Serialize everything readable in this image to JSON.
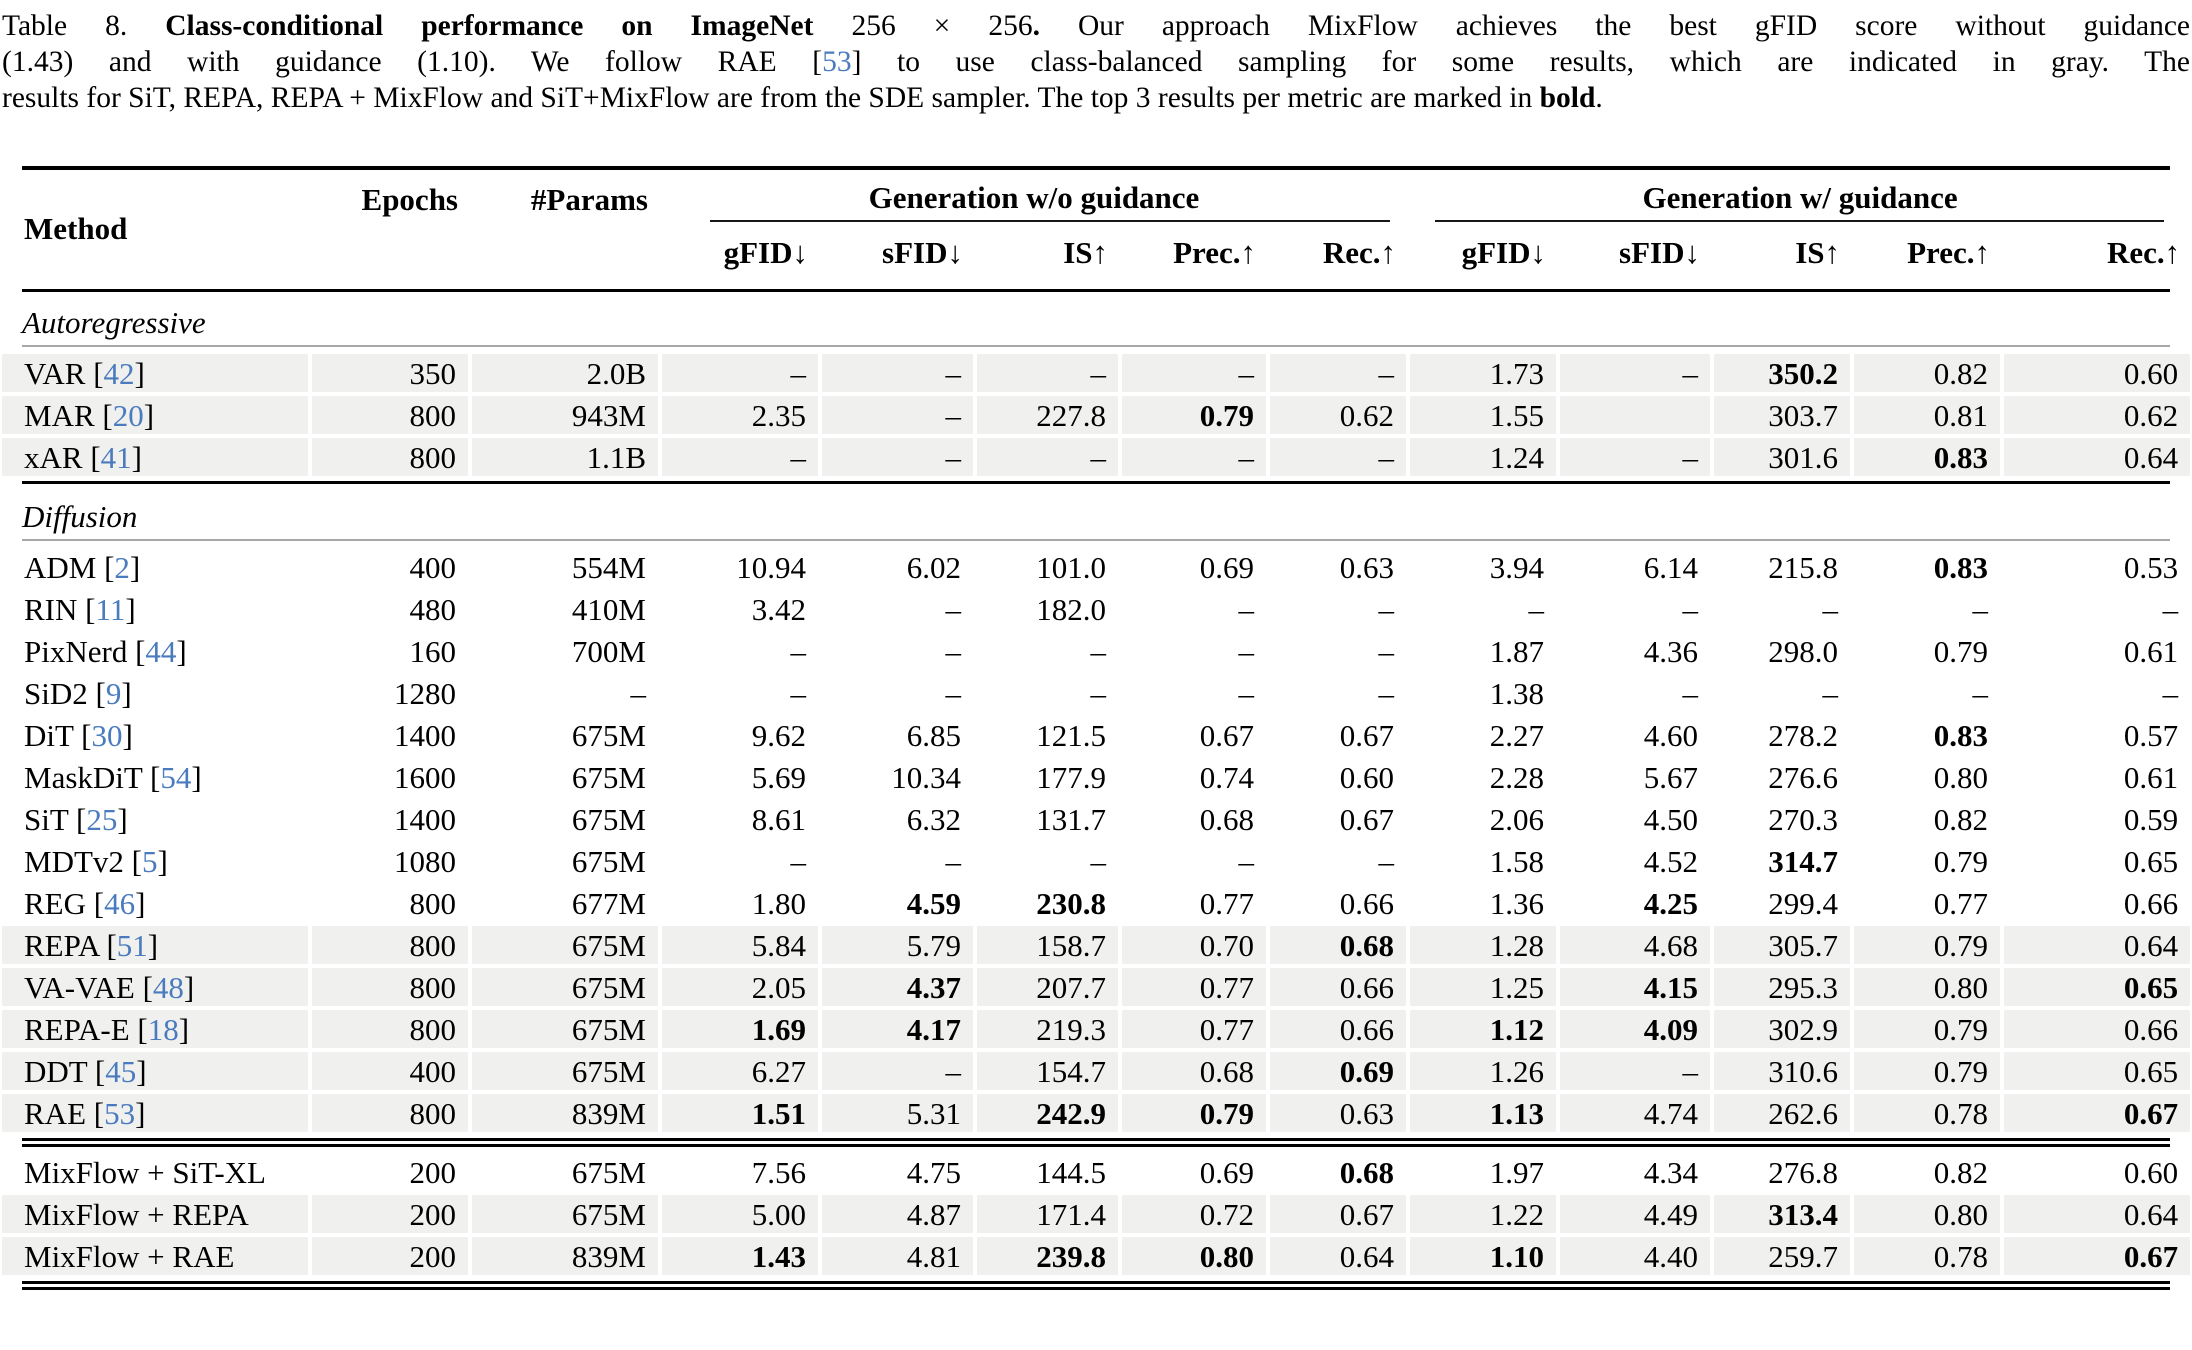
{
  "colors": {
    "citation_blue": "#4a7bbf",
    "row_gray": "#f0f0ef",
    "rule_black": "#000000",
    "thin_rule_gray": "#a8a8a8"
  },
  "caption": {
    "lines": [
      [
        {
          "t": "Table 8.  ",
          "b": false
        },
        {
          "t": "Class-conditional performance on ImageNet ",
          "b": true
        },
        {
          "t": "256 × 256",
          "b": false
        },
        {
          "t": ". ",
          "b": true
        },
        {
          "t": "Our approach MixFlow achieves the best gFID score without guidance",
          "b": false
        }
      ],
      [
        {
          "t": "(1.43) and with guidance (1.10). We follow RAE [",
          "b": false
        },
        {
          "t": "53",
          "b": false,
          "cite": true
        },
        {
          "t": "] to use class-balanced sampling for some results, which are indicated in gray. The",
          "b": false
        }
      ],
      [
        {
          "t": "results for SiT, REPA, REPA + MixFlow and SiT+MixFlow are from the SDE sampler. The top 3 results per metric are marked in ",
          "b": false
        },
        {
          "t": "bold",
          "b": true
        },
        {
          "t": ".",
          "b": false
        }
      ]
    ]
  },
  "table": {
    "col_method": "Method",
    "col_epochs": "Epochs",
    "col_params": "#Params",
    "groups": [
      {
        "title": "Generation w/o guidance",
        "cols": [
          "gFID↓",
          "sFID↓",
          "IS↑",
          "Prec.↑",
          "Rec.↑"
        ]
      },
      {
        "title": "Generation w/ guidance",
        "cols": [
          "gFID↓",
          "sFID↓",
          "IS↑",
          "Prec.↑",
          "Rec.↑"
        ]
      }
    ],
    "sections": [
      {
        "label": "Autoregressive",
        "pre_rule": "none",
        "rows": [
          {
            "method": "VAR",
            "ref": "42",
            "gray": true,
            "values": [
              "350",
              "2.0B",
              "–",
              "–",
              "–",
              "–",
              "–",
              "1.73",
              "–",
              "350.2",
              "0.82",
              "0.60"
            ],
            "bold": [
              9
            ]
          },
          {
            "method": "MAR",
            "ref": "20",
            "gray": true,
            "values": [
              "800",
              "943M",
              "2.35",
              "–",
              "227.8",
              "0.79",
              "0.62",
              "1.55",
              "",
              "303.7",
              "0.81",
              "0.62"
            ],
            "bold": [
              5
            ]
          },
          {
            "method": "xAR",
            "ref": "41",
            "gray": true,
            "values": [
              "800",
              "1.1B",
              "–",
              "–",
              "–",
              "–",
              "–",
              "1.24",
              "–",
              "301.6",
              "0.83",
              "0.64"
            ],
            "bold": [
              10
            ]
          }
        ]
      },
      {
        "label": "Diffusion",
        "pre_rule": "single",
        "rows": [
          {
            "method": "ADM",
            "ref": "2",
            "gray": false,
            "values": [
              "400",
              "554M",
              "10.94",
              "6.02",
              "101.0",
              "0.69",
              "0.63",
              "3.94",
              "6.14",
              "215.8",
              "0.83",
              "0.53"
            ],
            "bold": [
              10
            ]
          },
          {
            "method": "RIN",
            "ref": "11",
            "gray": false,
            "values": [
              "480",
              "410M",
              "3.42",
              "–",
              "182.0",
              "–",
              "–",
              "–",
              "–",
              "–",
              "–",
              "–"
            ],
            "bold": []
          },
          {
            "method": "PixNerd",
            "ref": "44",
            "gray": false,
            "values": [
              "160",
              "700M",
              "–",
              "–",
              "–",
              "–",
              "–",
              "1.87",
              "4.36",
              "298.0",
              "0.79",
              "0.61"
            ],
            "bold": []
          },
          {
            "method": "SiD2",
            "ref": "9",
            "gray": false,
            "values": [
              "1280",
              "–",
              "–",
              "–",
              "–",
              "–",
              "–",
              "1.38",
              "–",
              "–",
              "–",
              "–"
            ],
            "bold": []
          },
          {
            "method": "DiT",
            "ref": "30",
            "gray": false,
            "values": [
              "1400",
              "675M",
              "9.62",
              "6.85",
              "121.5",
              "0.67",
              "0.67",
              "2.27",
              "4.60",
              "278.2",
              "0.83",
              "0.57"
            ],
            "bold": [
              10
            ]
          },
          {
            "method": "MaskDiT",
            "ref": "54",
            "gray": false,
            "values": [
              "1600",
              "675M",
              "5.69",
              "10.34",
              "177.9",
              "0.74",
              "0.60",
              "2.28",
              "5.67",
              "276.6",
              "0.80",
              "0.61"
            ],
            "bold": []
          },
          {
            "method": "SiT",
            "ref": "25",
            "gray": false,
            "values": [
              "1400",
              "675M",
              "8.61",
              "6.32",
              "131.7",
              "0.68",
              "0.67",
              "2.06",
              "4.50",
              "270.3",
              "0.82",
              "0.59"
            ],
            "bold": []
          },
          {
            "method": "MDTv2",
            "ref": "5",
            "gray": false,
            "values": [
              "1080",
              "675M",
              "–",
              "–",
              "–",
              "–",
              "–",
              "1.58",
              "4.52",
              "314.7",
              "0.79",
              "0.65"
            ],
            "bold": [
              9
            ]
          },
          {
            "method": "REG",
            "ref": "46",
            "gray": false,
            "values": [
              "800",
              "677M",
              "1.80",
              "4.59",
              "230.8",
              "0.77",
              "0.66",
              "1.36",
              "4.25",
              "299.4",
              "0.77",
              "0.66"
            ],
            "bold": [
              3,
              4,
              8
            ]
          },
          {
            "method": "REPA",
            "ref": "51",
            "gray": true,
            "values": [
              "800",
              "675M",
              "5.84",
              "5.79",
              "158.7",
              "0.70",
              "0.68",
              "1.28",
              "4.68",
              "305.7",
              "0.79",
              "0.64"
            ],
            "bold": [
              6
            ]
          },
          {
            "method": "VA-VAE",
            "ref": "48",
            "gray": true,
            "values": [
              "800",
              "675M",
              "2.05",
              "4.37",
              "207.7",
              "0.77",
              "0.66",
              "1.25",
              "4.15",
              "295.3",
              "0.80",
              "0.65"
            ],
            "bold": [
              3,
              8,
              11
            ]
          },
          {
            "method": "REPA-E",
            "ref": "18",
            "gray": true,
            "values": [
              "800",
              "675M",
              "1.69",
              "4.17",
              "219.3",
              "0.77",
              "0.66",
              "1.12",
              "4.09",
              "302.9",
              "0.79",
              "0.66"
            ],
            "bold": [
              2,
              3,
              7,
              8
            ]
          },
          {
            "method": "DDT",
            "ref": "45",
            "gray": true,
            "values": [
              "400",
              "675M",
              "6.27",
              "–",
              "154.7",
              "0.68",
              "0.69",
              "1.26",
              "–",
              "310.6",
              "0.79",
              "0.65"
            ],
            "bold": [
              6
            ]
          },
          {
            "method": "RAE",
            "ref": "53",
            "gray": true,
            "values": [
              "800",
              "839M",
              "1.51",
              "5.31",
              "242.9",
              "0.79",
              "0.63",
              "1.13",
              "4.74",
              "262.6",
              "0.78",
              "0.67"
            ],
            "bold": [
              2,
              4,
              5,
              7,
              11
            ]
          }
        ]
      },
      {
        "label": null,
        "pre_rule": "double",
        "rows": [
          {
            "method": "MixFlow + SiT-XL",
            "ref": null,
            "gray": false,
            "values": [
              "200",
              "675M",
              "7.56",
              "4.75",
              "144.5",
              "0.69",
              "0.68",
              "1.97",
              "4.34",
              "276.8",
              "0.82",
              "0.60"
            ],
            "bold": [
              6
            ]
          },
          {
            "method": "MixFlow + REPA",
            "ref": null,
            "gray": true,
            "values": [
              "200",
              "675M",
              "5.00",
              "4.87",
              "171.4",
              "0.72",
              "0.67",
              "1.22",
              "4.49",
              "313.4",
              "0.80",
              "0.64"
            ],
            "bold": [
              9
            ]
          },
          {
            "method": "MixFlow + RAE",
            "ref": null,
            "gray": true,
            "values": [
              "200",
              "839M",
              "1.43",
              "4.81",
              "239.8",
              "0.80",
              "0.64",
              "1.10",
              "4.40",
              "259.7",
              "0.78",
              "0.67"
            ],
            "bold": [
              2,
              4,
              5,
              7,
              11
            ]
          }
        ]
      }
    ]
  }
}
